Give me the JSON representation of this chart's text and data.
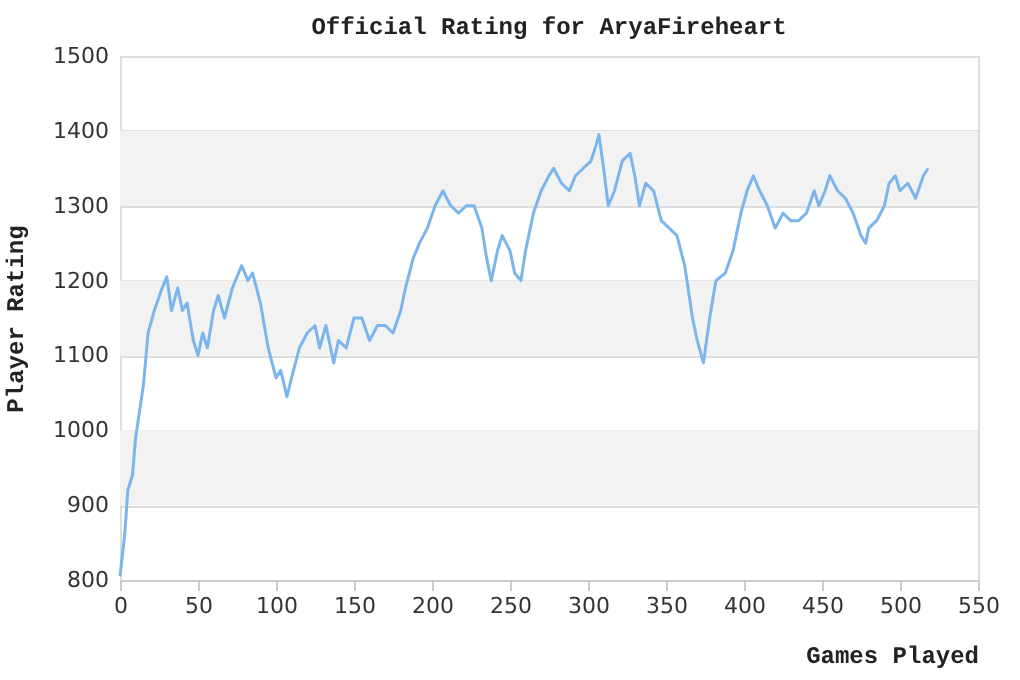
{
  "chart_data": {
    "type": "line",
    "title": "Official Rating for AryaFireheart",
    "xlabel": "Games Played",
    "ylabel": "Player Rating",
    "x": [
      0,
      3,
      5,
      8,
      10,
      15,
      18,
      22,
      27,
      30,
      33,
      37,
      40,
      43,
      47,
      50,
      53,
      56,
      60,
      63,
      67,
      72,
      78,
      82,
      85,
      90,
      95,
      100,
      103,
      107,
      110,
      115,
      120,
      125,
      128,
      132,
      137,
      140,
      145,
      150,
      155,
      160,
      165,
      170,
      175,
      180,
      183,
      188,
      192,
      197,
      202,
      207,
      212,
      217,
      222,
      227,
      232,
      235,
      238,
      242,
      245,
      250,
      253,
      257,
      260,
      265,
      270,
      275,
      278,
      283,
      288,
      292,
      297,
      302,
      305,
      307,
      310,
      313,
      317,
      322,
      327,
      330,
      333,
      337,
      342,
      347,
      352,
      357,
      362,
      367,
      370,
      374,
      378,
      382,
      388,
      393,
      398,
      402,
      406,
      410,
      415,
      420,
      425,
      430,
      435,
      440,
      445,
      448,
      452,
      455,
      460,
      465,
      470,
      475,
      478,
      480,
      485,
      490,
      493,
      497,
      500,
      505,
      510,
      515,
      518
    ],
    "series": [
      {
        "color": "#7cb5ec",
        "values": [
          805,
          860,
          920,
          940,
          990,
          1060,
          1130,
          1160,
          1190,
          1205,
          1160,
          1190,
          1160,
          1170,
          1120,
          1100,
          1130,
          1110,
          1160,
          1180,
          1150,
          1190,
          1220,
          1200,
          1210,
          1170,
          1110,
          1070,
          1080,
          1045,
          1070,
          1110,
          1130,
          1140,
          1110,
          1140,
          1090,
          1120,
          1110,
          1150,
          1150,
          1120,
          1140,
          1140,
          1130,
          1160,
          1190,
          1230,
          1250,
          1270,
          1300,
          1320,
          1300,
          1290,
          1300,
          1300,
          1270,
          1230,
          1200,
          1240,
          1260,
          1240,
          1210,
          1200,
          1240,
          1290,
          1320,
          1340,
          1350,
          1330,
          1320,
          1340,
          1350,
          1360,
          1380,
          1395,
          1350,
          1300,
          1320,
          1360,
          1370,
          1340,
          1300,
          1330,
          1320,
          1280,
          1270,
          1260,
          1220,
          1150,
          1120,
          1090,
          1150,
          1200,
          1210,
          1240,
          1290,
          1320,
          1340,
          1320,
          1300,
          1270,
          1290,
          1280,
          1280,
          1290,
          1320,
          1300,
          1320,
          1340,
          1320,
          1310,
          1290,
          1260,
          1250,
          1270,
          1280,
          1300,
          1330,
          1340,
          1320,
          1330,
          1310,
          1340,
          1350
        ]
      }
    ],
    "xlim": [
      0,
      550
    ],
    "xticks": [
      0,
      50,
      100,
      150,
      200,
      250,
      300,
      350,
      400,
      450,
      500,
      550
    ],
    "ylim": [
      800,
      1500
    ],
    "yticks": [
      800,
      900,
      1000,
      1100,
      1200,
      1300,
      1400,
      1500
    ],
    "grid": "y",
    "bands": [
      {
        "axis": "y",
        "from": 900,
        "to": 1000,
        "color": "#f2f2f2"
      },
      {
        "axis": "y",
        "from": 1100,
        "to": 1200,
        "color": "#f2f2f2"
      },
      {
        "axis": "y",
        "from": 1300,
        "to": 1400,
        "color": "#f2f2f2"
      }
    ]
  }
}
